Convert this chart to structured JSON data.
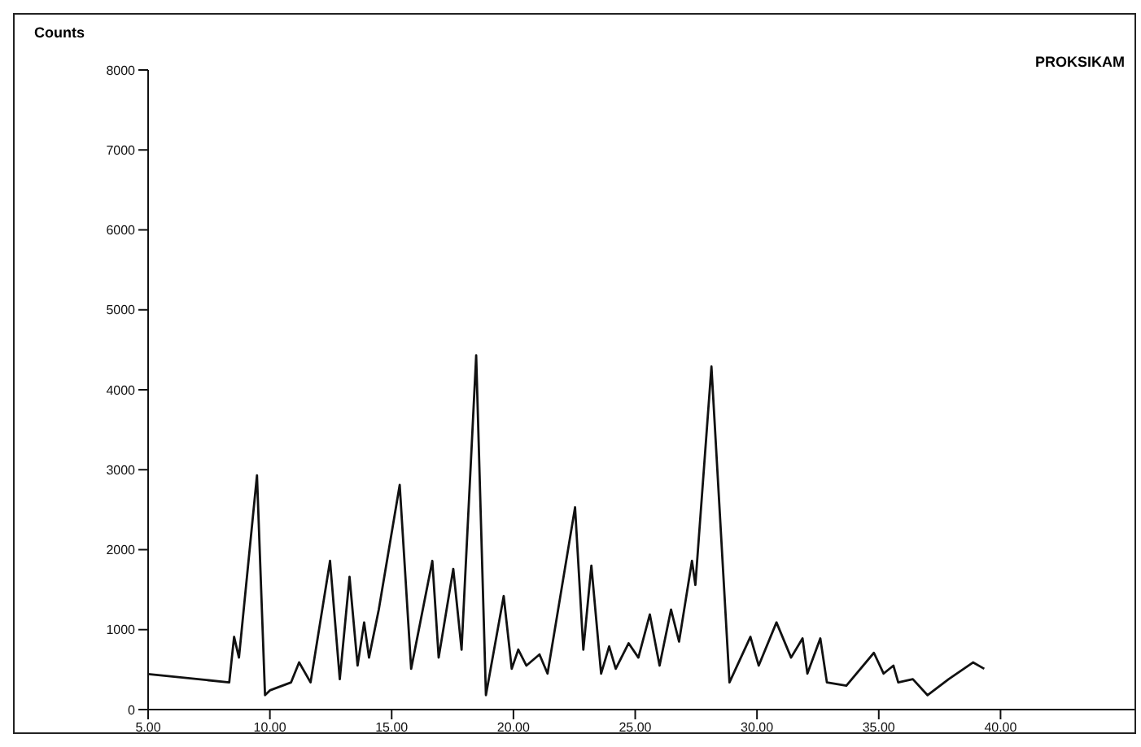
{
  "chart_data": {
    "type": "line",
    "ylabel": "Counts",
    "subtitle": "PROKSIKAM",
    "x": [
      5,
      8.33,
      8.53,
      8.73,
      9.47,
      9.8,
      10,
      10.87,
      11.2,
      11.67,
      12.47,
      12.87,
      13.27,
      13.6,
      13.87,
      14.07,
      14.47,
      15.33,
      15.8,
      16.67,
      16.93,
      17.53,
      17.87,
      18.47,
      18.87,
      19.6,
      19.93,
      20.2,
      20.53,
      21.07,
      21.4,
      22.53,
      22.87,
      23.2,
      23.6,
      23.93,
      24.2,
      24.73,
      25.13,
      25.6,
      26,
      26.47,
      26.8,
      27.33,
      27.47,
      28.13,
      28.87,
      29.73,
      30.07,
      30.8,
      31.4,
      31.87,
      32.07,
      32.6,
      32.87,
      33.67,
      34.8,
      35.2,
      35.6,
      35.8,
      36.4,
      37,
      37.87,
      38.87,
      39.33
    ],
    "series": [
      {
        "color": "#111111",
        "values": [
          445,
          340,
          910,
          650,
          2930,
          180,
          240,
          340,
          590,
          340,
          1860,
          380,
          1660,
          550,
          1090,
          650,
          1250,
          2810,
          510,
          1860,
          650,
          1760,
          750,
          4430,
          180,
          1420,
          510,
          750,
          550,
          690,
          450,
          2530,
          750,
          1800,
          450,
          790,
          510,
          830,
          650,
          1190,
          550,
          1250,
          850,
          1860,
          1560,
          4290,
          340,
          910,
          550,
          1090,
          650,
          890,
          450,
          890,
          340,
          300,
          710,
          450,
          550,
          340,
          380,
          180,
          380,
          590,
          510
        ]
      }
    ],
    "xlim": [
      5,
      45.5
    ],
    "xticks": [
      {
        "value": 5,
        "label": "5.00"
      },
      {
        "value": 10,
        "label": "10.00"
      },
      {
        "value": 15,
        "label": "15.00"
      },
      {
        "value": 20,
        "label": "20.00"
      },
      {
        "value": 25,
        "label": "25.00"
      },
      {
        "value": 30,
        "label": "30.00"
      },
      {
        "value": 35,
        "label": "35.00"
      },
      {
        "value": 40,
        "label": "40.00"
      }
    ],
    "ylim": [
      0,
      8000
    ],
    "yticks": [
      0,
      1000,
      2000,
      3000,
      4000,
      5000,
      6000,
      7000,
      8000
    ],
    "grid": false,
    "legend": false,
    "marker": "none",
    "line_style": "solid"
  }
}
